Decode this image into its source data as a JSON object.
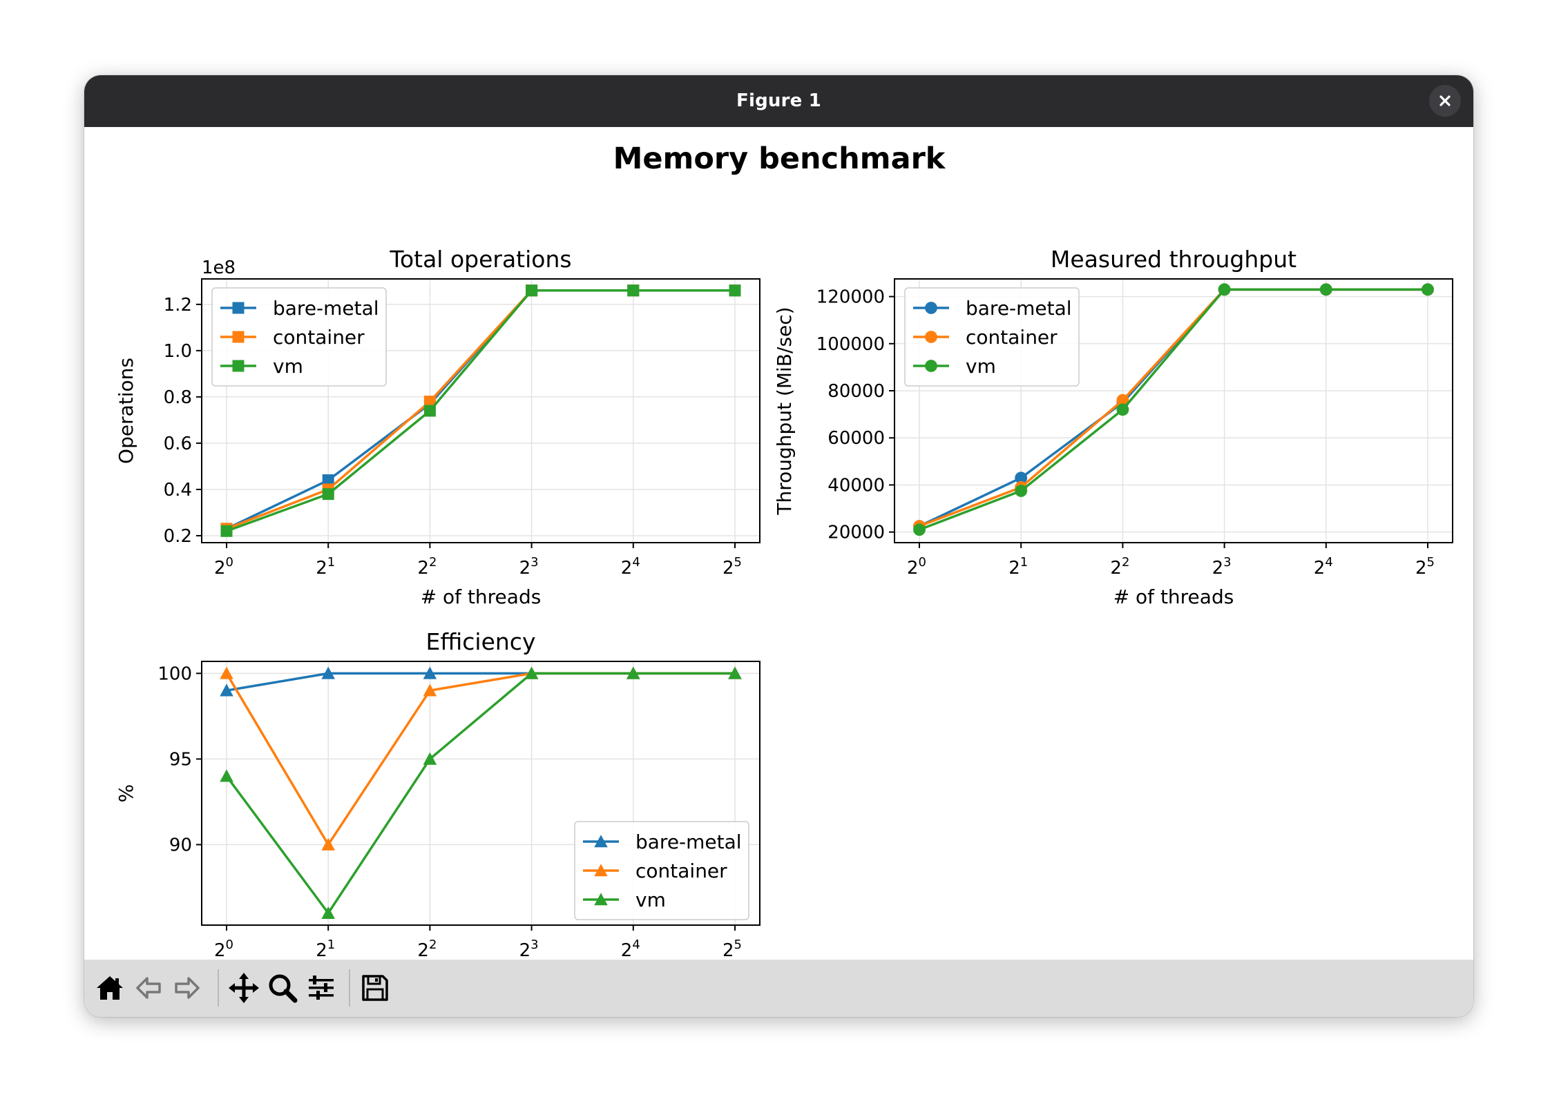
{
  "window": {
    "title": "Figure 1",
    "close_icon": "close-icon"
  },
  "figure": {
    "suptitle": "Memory benchmark"
  },
  "colors": {
    "bare-metal": "#1f77b4",
    "container": "#ff7f0e",
    "vm": "#2ca02c"
  },
  "chart_data": [
    {
      "type": "line",
      "title": "Total operations",
      "xlabel": "# of threads",
      "ylabel": "Operations",
      "offset_label": "1e8",
      "x": [
        1,
        2,
        4,
        8,
        16,
        32
      ],
      "xscale": "log2",
      "xticklabels": [
        {
          "base": "2",
          "exp": "0"
        },
        {
          "base": "2",
          "exp": "1"
        },
        {
          "base": "2",
          "exp": "2"
        },
        {
          "base": "2",
          "exp": "3"
        },
        {
          "base": "2",
          "exp": "4"
        },
        {
          "base": "2",
          "exp": "5"
        }
      ],
      "yticks": [
        0.2,
        0.4,
        0.6,
        0.8,
        1.0,
        1.2
      ],
      "yticklabels": [
        "0.2",
        "0.4",
        "0.6",
        "0.8",
        "1.0",
        "1.2"
      ],
      "ylim": [
        0.17,
        1.31
      ],
      "marker": "square",
      "legend_position": "upper-left",
      "grid": true,
      "series": [
        {
          "name": "bare-metal",
          "values": [
            0.23,
            0.44,
            0.77,
            1.26,
            1.26,
            1.26
          ]
        },
        {
          "name": "container",
          "values": [
            0.23,
            0.4,
            0.78,
            1.26,
            1.26,
            1.26
          ]
        },
        {
          "name": "vm",
          "values": [
            0.22,
            0.38,
            0.74,
            1.26,
            1.26,
            1.26
          ]
        }
      ]
    },
    {
      "type": "line",
      "title": "Measured throughput",
      "xlabel": "# of threads",
      "ylabel": "Throughput (MiB/sec)",
      "x": [
        1,
        2,
        4,
        8,
        16,
        32
      ],
      "xscale": "log2",
      "xticklabels": [
        {
          "base": "2",
          "exp": "0"
        },
        {
          "base": "2",
          "exp": "1"
        },
        {
          "base": "2",
          "exp": "2"
        },
        {
          "base": "2",
          "exp": "3"
        },
        {
          "base": "2",
          "exp": "4"
        },
        {
          "base": "2",
          "exp": "5"
        }
      ],
      "yticks": [
        20000,
        40000,
        60000,
        80000,
        100000,
        120000
      ],
      "yticklabels": [
        "20000",
        "40000",
        "60000",
        "80000",
        "100000",
        "120000"
      ],
      "ylim": [
        15500,
        127500
      ],
      "marker": "circle",
      "legend_position": "upper-left",
      "grid": true,
      "series": [
        {
          "name": "bare-metal",
          "values": [
            22500,
            43000,
            75000,
            123000,
            123000,
            123000
          ]
        },
        {
          "name": "container",
          "values": [
            22500,
            39000,
            76000,
            123000,
            123000,
            123000
          ]
        },
        {
          "name": "vm",
          "values": [
            21000,
            37500,
            72000,
            123000,
            123000,
            123000
          ]
        }
      ]
    },
    {
      "type": "line",
      "title": "Efficiency",
      "xlabel": "# of threads",
      "ylabel": "%",
      "x": [
        1,
        2,
        4,
        8,
        16,
        32
      ],
      "xscale": "log2",
      "xticklabels": [
        {
          "base": "2",
          "exp": "0"
        },
        {
          "base": "2",
          "exp": "1"
        },
        {
          "base": "2",
          "exp": "2"
        },
        {
          "base": "2",
          "exp": "3"
        },
        {
          "base": "2",
          "exp": "4"
        },
        {
          "base": "2",
          "exp": "5"
        }
      ],
      "yticks": [
        90,
        95,
        100
      ],
      "yticklabels": [
        "90",
        "95",
        "100"
      ],
      "ylim": [
        85.3,
        100.7
      ],
      "marker": "triangle",
      "legend_position": "lower-right",
      "grid": true,
      "series": [
        {
          "name": "bare-metal",
          "values": [
            99,
            100,
            100,
            100,
            100,
            100
          ]
        },
        {
          "name": "container",
          "values": [
            100,
            90,
            99,
            100,
            100,
            100
          ]
        },
        {
          "name": "vm",
          "values": [
            94,
            86,
            95,
            100,
            100,
            100
          ]
        }
      ]
    }
  ],
  "toolbar": {
    "items": [
      {
        "icon": "home-icon",
        "name": "home-button"
      },
      {
        "icon": "back-arrow-icon",
        "name": "back-button"
      },
      {
        "icon": "forward-arrow-icon",
        "name": "forward-button"
      },
      {
        "icon": "pan-move-icon",
        "name": "pan-button"
      },
      {
        "icon": "zoom-magnifier-icon",
        "name": "zoom-button"
      },
      {
        "icon": "configure-subplots-icon",
        "name": "configure-subplots-button"
      },
      {
        "icon": "save-floppy-icon",
        "name": "save-button"
      }
    ]
  }
}
